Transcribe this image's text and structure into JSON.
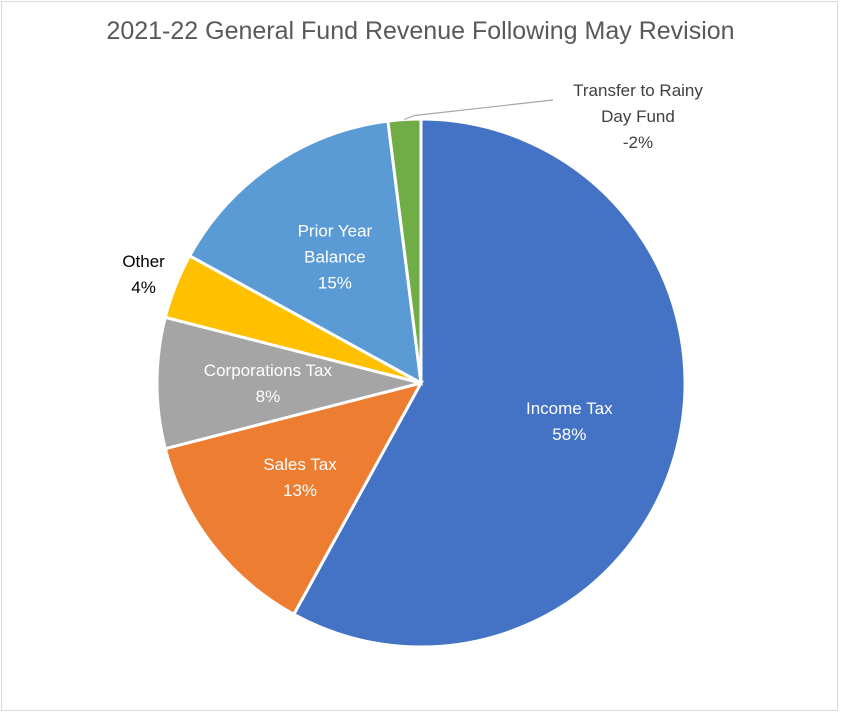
{
  "chart_data": {
    "type": "pie",
    "title": "2021-22 General Fund Revenue Following May Revision",
    "start_category": "Transfer to Rainy Day Fund",
    "slices": [
      {
        "name": "Income Tax",
        "label_lines": [
          "Income Tax",
          "58%"
        ],
        "value": 58,
        "color": "#4472c4",
        "label_color": "#ffffff"
      },
      {
        "name": "Sales Tax",
        "label_lines": [
          "Sales Tax",
          "13%"
        ],
        "value": 13,
        "color": "#ed7d31",
        "label_color": "#ffffff"
      },
      {
        "name": "Corporations Tax",
        "label_lines": [
          "Corporations Tax",
          "8%"
        ],
        "value": 8,
        "color": "#a5a5a5",
        "label_color": "#ffffff"
      },
      {
        "name": "Other",
        "label_lines": [
          "Other",
          "4%"
        ],
        "value": 4,
        "color": "#ffc000",
        "label_color": "#000000"
      },
      {
        "name": "Prior Year Balance",
        "label_lines": [
          "Prior Year",
          "Balance",
          "15%"
        ],
        "value": 15,
        "color": "#5b9bd5",
        "label_color": "#ffffff"
      },
      {
        "name": "Transfer to Rainy Day Fund",
        "label_lines": [
          "Transfer to Rainy",
          "Day Fund",
          "-2%"
        ],
        "value": -2,
        "color": "#70ad47",
        "label_color": "#404040"
      }
    ]
  }
}
